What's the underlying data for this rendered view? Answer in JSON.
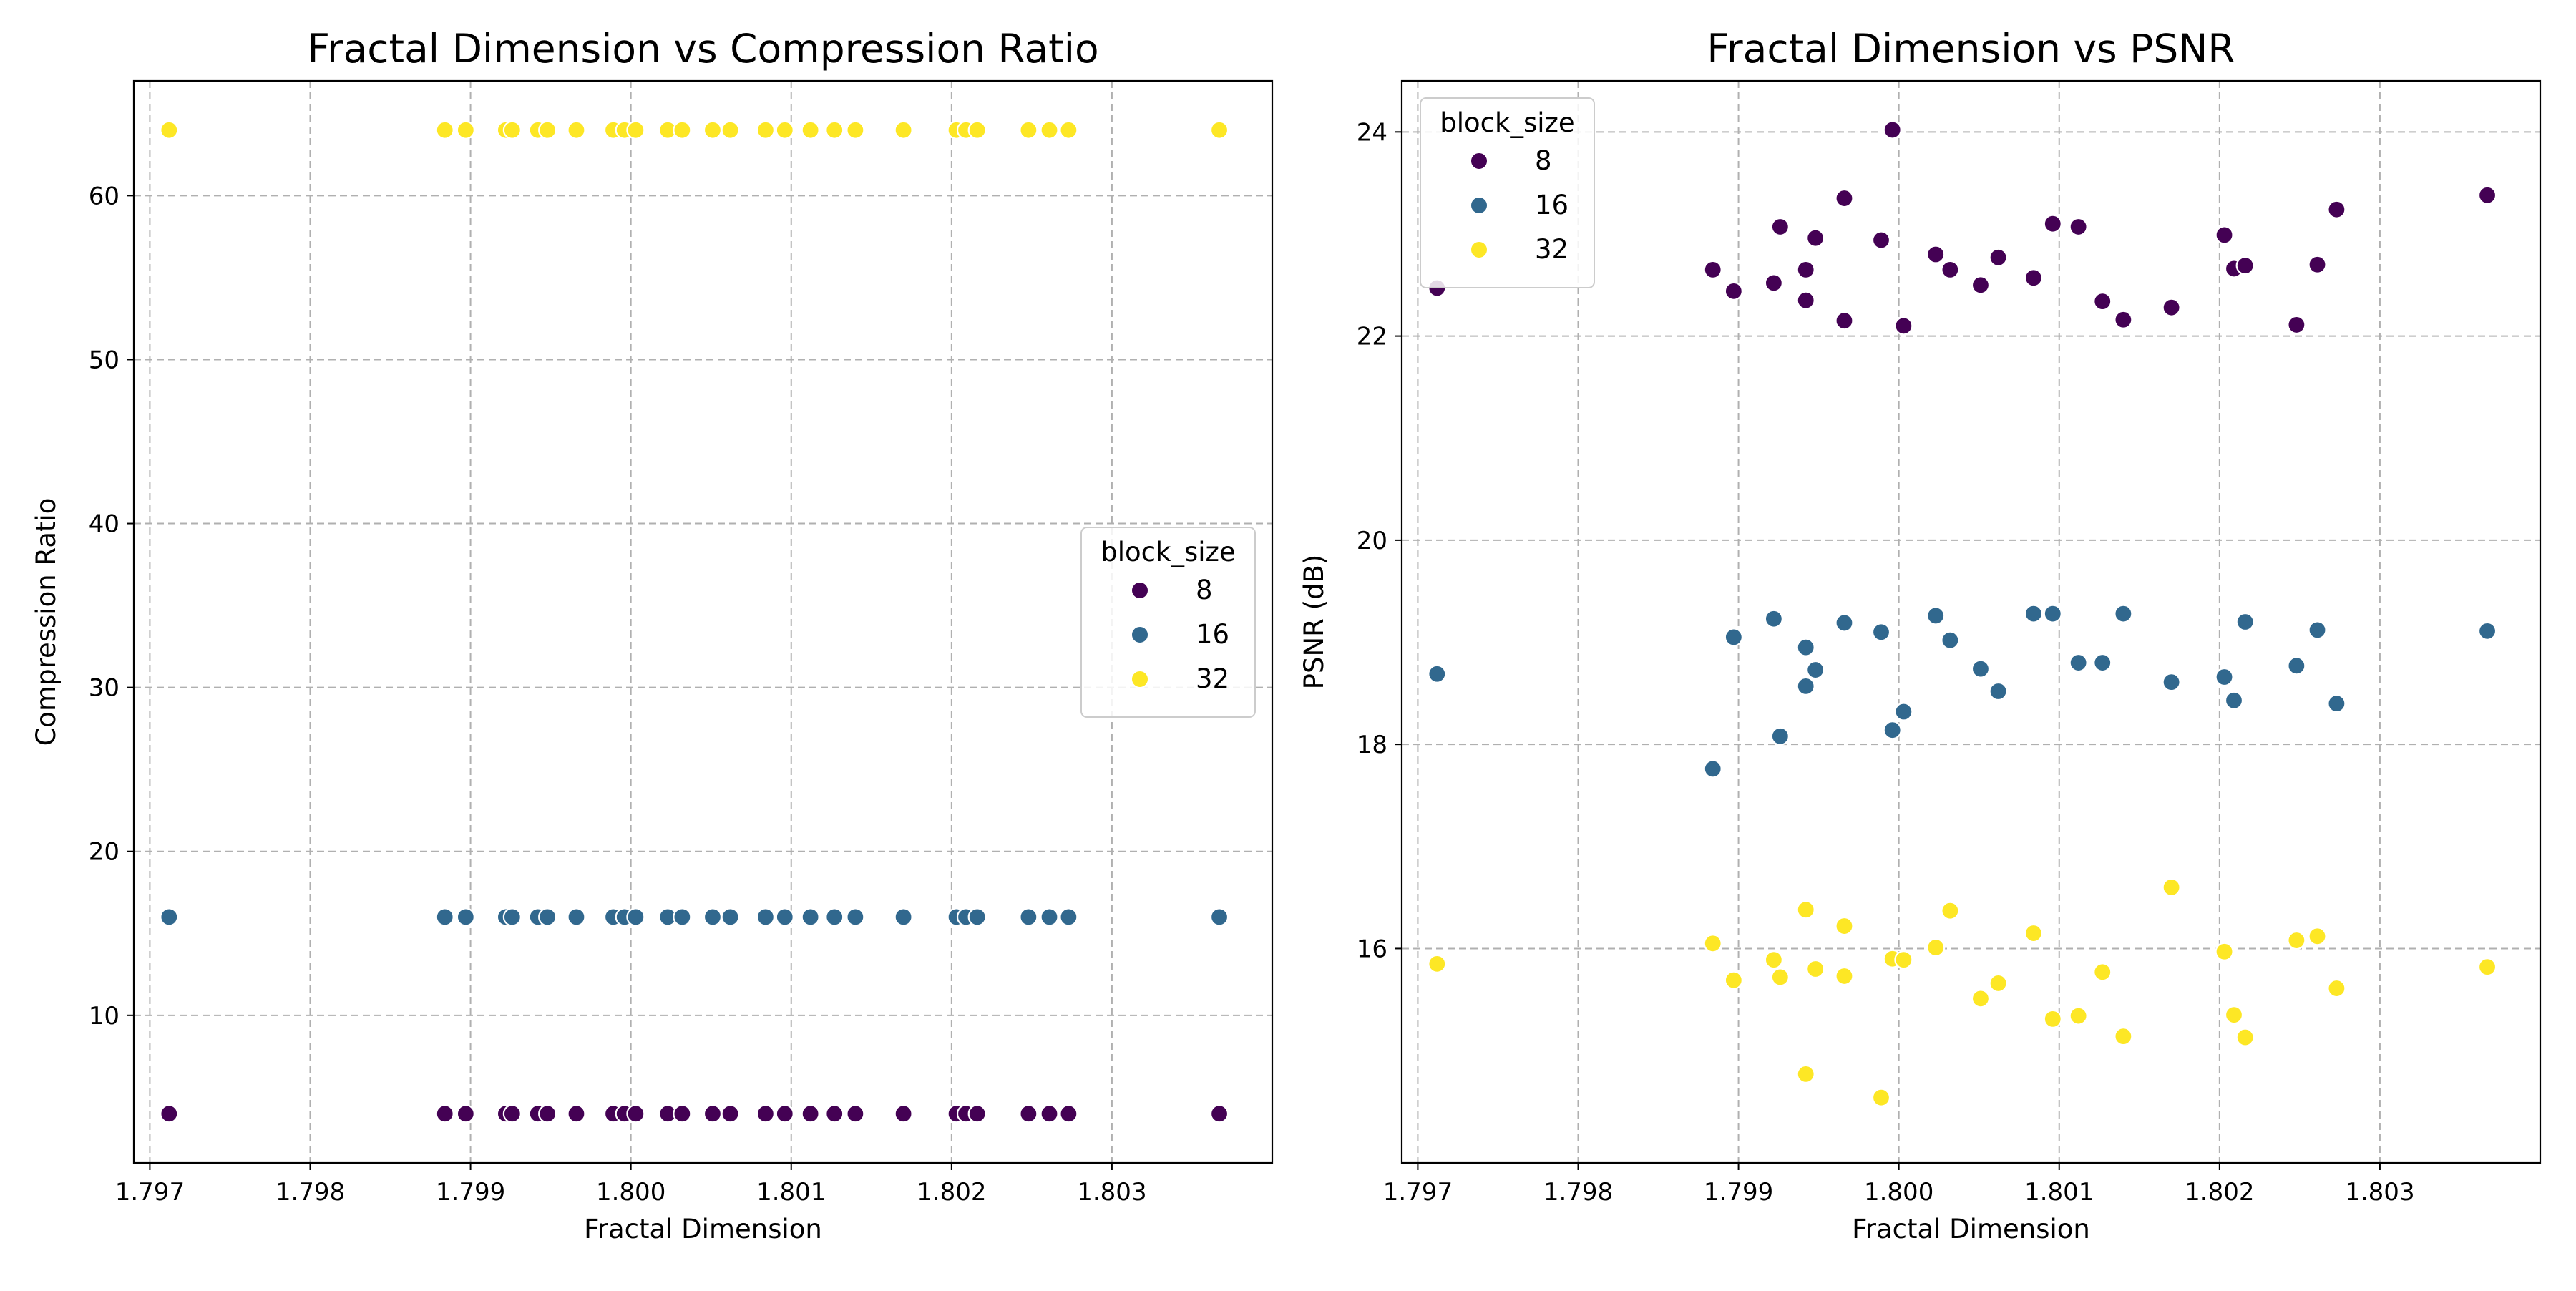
{
  "chart_data": [
    {
      "type": "scatter",
      "title": "Fractal Dimension vs Compression Ratio",
      "xlabel": "Fractal Dimension",
      "ylabel": "Compression Ratio",
      "xlim": [
        1.7969,
        1.804
      ],
      "ylim": [
        1.0,
        67.0
      ],
      "xticks": [
        1.797,
        1.798,
        1.799,
        1.8,
        1.801,
        1.802,
        1.803
      ],
      "xtick_labels": [
        "1.797",
        "1.798",
        "1.799",
        "1.800",
        "1.801",
        "1.802",
        "1.803"
      ],
      "yticks": [
        10,
        20,
        30,
        40,
        50,
        60
      ],
      "ytick_labels": [
        "10",
        "20",
        "30",
        "40",
        "50",
        "60"
      ],
      "grid": true,
      "legend": {
        "title": "block_size",
        "placement": "center-right"
      },
      "series": [
        {
          "name": "8",
          "color": "#440154",
          "x": [
            1.79712,
            1.79884,
            1.79897,
            1.79922,
            1.79926,
            1.79942,
            1.79948,
            1.79966,
            1.79989,
            1.79996,
            1.80003,
            1.80023,
            1.80032,
            1.80051,
            1.80062,
            1.80084,
            1.80096,
            1.80112,
            1.80127,
            1.8014,
            1.8017,
            1.80203,
            1.80209,
            1.80216,
            1.80248,
            1.80261,
            1.80273,
            1.80367
          ],
          "y": [
            4,
            4,
            4,
            4,
            4,
            4,
            4,
            4,
            4,
            4,
            4,
            4,
            4,
            4,
            4,
            4,
            4,
            4,
            4,
            4,
            4,
            4,
            4,
            4,
            4,
            4,
            4,
            4
          ]
        },
        {
          "name": "16",
          "color": "#31688e",
          "x": [
            1.79712,
            1.79884,
            1.79897,
            1.79922,
            1.79926,
            1.79942,
            1.79948,
            1.79966,
            1.79989,
            1.79996,
            1.80003,
            1.80023,
            1.80032,
            1.80051,
            1.80062,
            1.80084,
            1.80096,
            1.80112,
            1.80127,
            1.8014,
            1.8017,
            1.80203,
            1.80209,
            1.80216,
            1.80248,
            1.80261,
            1.80273,
            1.80367
          ],
          "y": [
            16,
            16,
            16,
            16,
            16,
            16,
            16,
            16,
            16,
            16,
            16,
            16,
            16,
            16,
            16,
            16,
            16,
            16,
            16,
            16,
            16,
            16,
            16,
            16,
            16,
            16,
            16,
            16
          ]
        },
        {
          "name": "32",
          "color": "#fde725",
          "x": [
            1.79712,
            1.79884,
            1.79897,
            1.79922,
            1.79926,
            1.79942,
            1.79948,
            1.79966,
            1.79989,
            1.79996,
            1.80003,
            1.80023,
            1.80032,
            1.80051,
            1.80062,
            1.80084,
            1.80096,
            1.80112,
            1.80127,
            1.8014,
            1.8017,
            1.80203,
            1.80209,
            1.80216,
            1.80248,
            1.80261,
            1.80273,
            1.80367
          ],
          "y": [
            64,
            64,
            64,
            64,
            64,
            64,
            64,
            64,
            64,
            64,
            64,
            64,
            64,
            64,
            64,
            64,
            64,
            64,
            64,
            64,
            64,
            64,
            64,
            64,
            64,
            64,
            64,
            64
          ]
        }
      ]
    },
    {
      "type": "scatter",
      "title": "Fractal Dimension vs PSNR",
      "xlabel": "Fractal Dimension",
      "ylabel": "PSNR (dB)",
      "xlim": [
        1.7969,
        1.804
      ],
      "ylim": [
        13.9,
        24.5
      ],
      "xticks": [
        1.797,
        1.798,
        1.799,
        1.8,
        1.801,
        1.802,
        1.803
      ],
      "xtick_labels": [
        "1.797",
        "1.798",
        "1.799",
        "1.800",
        "1.801",
        "1.802",
        "1.803"
      ],
      "yticks": [
        16,
        18,
        20,
        22,
        24
      ],
      "ytick_labels": [
        "16",
        "18",
        "20",
        "22",
        "24"
      ],
      "grid": true,
      "legend": {
        "title": "block_size",
        "placement": "top-left"
      },
      "series": [
        {
          "name": "8",
          "color": "#440154",
          "x": [
            1.79712,
            1.79884,
            1.79897,
            1.79922,
            1.79926,
            1.79942,
            1.79942,
            1.79948,
            1.79966,
            1.79966,
            1.79989,
            1.79996,
            1.80003,
            1.80023,
            1.80032,
            1.80051,
            1.80062,
            1.80084,
            1.80096,
            1.80112,
            1.80127,
            1.8014,
            1.8017,
            1.80203,
            1.80209,
            1.80216,
            1.80248,
            1.80261,
            1.80273,
            1.80367
          ],
          "y": [
            22.47,
            22.65,
            22.44,
            22.52,
            23.07,
            22.65,
            22.35,
            22.96,
            23.35,
            22.15,
            22.94,
            24.02,
            22.1,
            22.8,
            22.65,
            22.5,
            22.77,
            22.57,
            23.1,
            23.07,
            22.34,
            22.16,
            22.28,
            22.99,
            22.66,
            22.69,
            22.11,
            22.7,
            23.24,
            23.38
          ]
        },
        {
          "name": "16",
          "color": "#31688e",
          "x": [
            1.79712,
            1.79884,
            1.79897,
            1.79922,
            1.79926,
            1.79942,
            1.79942,
            1.79948,
            1.79966,
            1.79989,
            1.79996,
            1.80003,
            1.80023,
            1.80032,
            1.80051,
            1.80062,
            1.80084,
            1.80096,
            1.80112,
            1.80127,
            1.8014,
            1.8017,
            1.80203,
            1.80209,
            1.80216,
            1.80248,
            1.80261,
            1.80273,
            1.80367
          ],
          "y": [
            18.69,
            17.76,
            19.05,
            19.23,
            18.08,
            18.95,
            18.57,
            18.73,
            19.19,
            19.1,
            18.14,
            18.32,
            19.26,
            19.02,
            18.74,
            18.52,
            19.28,
            19.28,
            18.8,
            18.8,
            19.28,
            18.61,
            18.66,
            18.43,
            19.2,
            18.77,
            19.12,
            18.4,
            19.11
          ]
        },
        {
          "name": "32",
          "color": "#fde725",
          "x": [
            1.79712,
            1.79884,
            1.79897,
            1.79922,
            1.79926,
            1.79942,
            1.79942,
            1.79948,
            1.79966,
            1.79966,
            1.79989,
            1.79996,
            1.80003,
            1.80023,
            1.80032,
            1.80051,
            1.80062,
            1.80084,
            1.80096,
            1.80112,
            1.80127,
            1.8014,
            1.8017,
            1.80203,
            1.80209,
            1.80216,
            1.80248,
            1.80261,
            1.80273,
            1.80367
          ],
          "y": [
            15.85,
            16.05,
            15.69,
            15.89,
            15.72,
            16.38,
            14.77,
            15.8,
            16.22,
            15.73,
            14.54,
            15.9,
            15.89,
            16.01,
            16.37,
            15.51,
            15.66,
            16.15,
            15.31,
            15.34,
            15.77,
            15.14,
            16.6,
            15.97,
            15.35,
            15.13,
            16.08,
            16.12,
            15.61,
            15.82
          ]
        }
      ]
    }
  ]
}
